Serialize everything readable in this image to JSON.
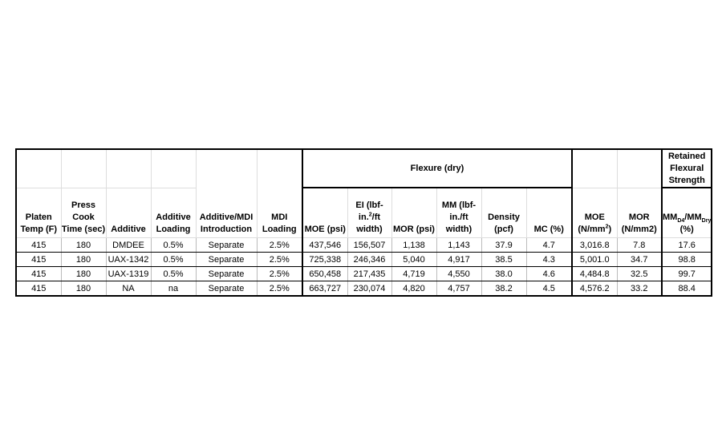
{
  "band": {
    "flexure_dry": "Flexure (dry)",
    "retained": "Retained Flexural Strength"
  },
  "headers": {
    "platen": "Platen Temp (F)",
    "press": "Press Cook Time (sec)",
    "additive": "Additive",
    "additive_loading": "Additive Loading",
    "introduction": "Additive/MDI Introduction",
    "mdi_loading": "MDI Loading",
    "moe_psi": "MOE (psi)",
    "ei_a": "EI (lbf-in.",
    "ei_sup": "2",
    "ei_b": "/ft width)",
    "mor_psi": "MOR (psi)",
    "mm": "MM (lbf-in./ft width)",
    "density": "Density (pcf)",
    "mc": "MC (%)",
    "moe_si_a": "MOE (N/mm",
    "moe_si_sup": "2",
    "moe_si_b": ")",
    "mor_si": "MOR (N/mm2)",
    "ret_a": "MM",
    "ret_sub1": "D4",
    "ret_b": "/MM",
    "ret_sub2": "Dry",
    "ret_c": "(%)"
  },
  "rows": [
    [
      "415",
      "180",
      "DMDEE",
      "0.5%",
      "Separate",
      "2.5%",
      "437,546",
      "156,507",
      "1,138",
      "1,143",
      "37.9",
      "4.7",
      "3,016.8",
      "7.8",
      "17.6"
    ],
    [
      "415",
      "180",
      "UAX-1342",
      "0.5%",
      "Separate",
      "2.5%",
      "725,338",
      "246,346",
      "5,040",
      "4,917",
      "38.5",
      "4.3",
      "5,001.0",
      "34.7",
      "98.8"
    ],
    [
      "415",
      "180",
      "UAX-1319",
      "0.5%",
      "Separate",
      "2.5%",
      "650,458",
      "217,435",
      "4,719",
      "4,550",
      "38.0",
      "4.6",
      "4,484.8",
      "32.5",
      "99.7"
    ],
    [
      "415",
      "180",
      "NA",
      "na",
      "Separate",
      "2.5%",
      "663,727",
      "230,074",
      "4,820",
      "4,757",
      "38.2",
      "4.5",
      "4,576.2",
      "33.2",
      "88.4"
    ]
  ]
}
